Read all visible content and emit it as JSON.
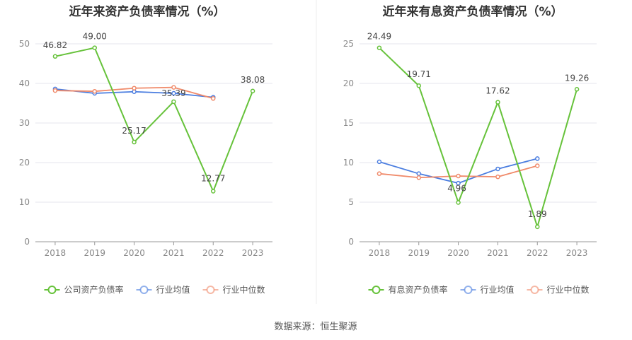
{
  "source": "数据来源：恒生聚源",
  "colors": {
    "main": "#66c23a",
    "avg": "#4a7de0",
    "median": "#f08a6a"
  },
  "chart_data": [
    {
      "type": "line",
      "title": "近年来资产负债率情况（%）",
      "x": [
        "2018",
        "2019",
        "2020",
        "2021",
        "2022",
        "2023"
      ],
      "ylim": [
        0,
        50
      ],
      "yticks": [
        0,
        10,
        20,
        30,
        40,
        50
      ],
      "grid": true,
      "legend_position": "bottom",
      "series": [
        {
          "name": "公司资产负债率",
          "role": "main",
          "values": [
            46.82,
            49.0,
            25.17,
            35.39,
            12.77,
            38.08
          ],
          "labels": [
            "46.82",
            "49.00",
            "25.17",
            "35.39",
            "12.77",
            "38.08"
          ]
        },
        {
          "name": "行业均值",
          "role": "avg",
          "values": [
            38.6,
            37.5,
            37.9,
            37.5,
            36.5,
            null
          ]
        },
        {
          "name": "行业中位数",
          "role": "median",
          "values": [
            38.2,
            38.0,
            38.8,
            39.0,
            36.2,
            null
          ]
        }
      ]
    },
    {
      "type": "line",
      "title": "近年来有息资产负债率情况（%）",
      "x": [
        "2018",
        "2019",
        "2020",
        "2021",
        "2022",
        "2023"
      ],
      "ylim": [
        0,
        25
      ],
      "yticks": [
        0,
        5,
        10,
        15,
        20,
        25
      ],
      "grid": true,
      "legend_position": "bottom",
      "series": [
        {
          "name": "有息资产负债率",
          "role": "main",
          "values": [
            24.49,
            19.71,
            4.96,
            17.62,
            1.89,
            19.26
          ],
          "labels": [
            "24.49",
            "19.71",
            "4.96",
            "17.62",
            "1.89",
            "19.26"
          ]
        },
        {
          "name": "行业均值",
          "role": "avg",
          "values": [
            10.1,
            8.6,
            7.4,
            9.2,
            10.5,
            null
          ]
        },
        {
          "name": "行业中位数",
          "role": "median",
          "values": [
            8.6,
            8.1,
            8.3,
            8.2,
            9.6,
            null
          ]
        }
      ]
    }
  ]
}
